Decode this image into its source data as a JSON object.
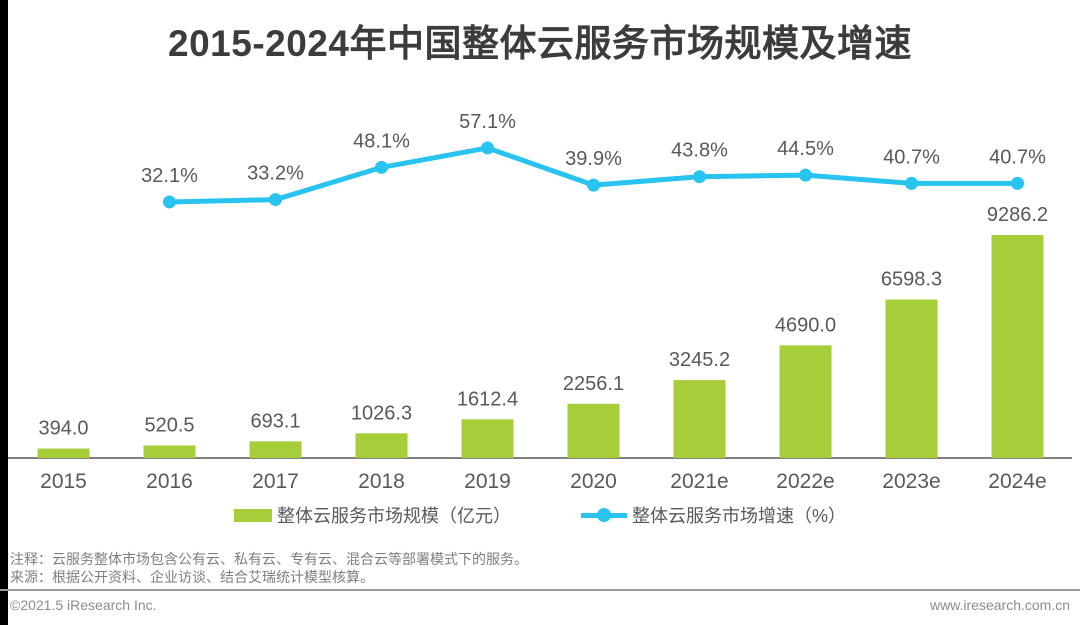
{
  "title": "2015-2024年中国整体云服务市场规模及增速",
  "legend": {
    "bar_label": "整体云服务市场规模（亿元）",
    "line_label": "整体云服务市场增速（%）"
  },
  "notes": {
    "line1": "注释：云服务整体市场包含公有云、私有云、专有云、混合云等部署模式下的服务。",
    "line2": "来源：根据公开资料、企业访谈、结合艾瑞统计模型核算。"
  },
  "footer": {
    "left": "©2021.5 iResearch Inc.",
    "right": "www.iresearch.com.cn"
  },
  "colors": {
    "bar": "#A6CE39",
    "line": "#29C3EF",
    "axis": "#7F7F7F",
    "title_text": "#3C3C3C",
    "label_text": "#595959",
    "note_text": "#7F7F7F",
    "footer_text": "#8C8C8C"
  },
  "chart_data": {
    "type": "combo",
    "title": "2015-2024年中国整体云服务市场规模及增速",
    "categories": [
      "2015",
      "2016",
      "2017",
      "2018",
      "2019",
      "2020",
      "2021e",
      "2022e",
      "2023e",
      "2024e"
    ],
    "series": [
      {
        "name": "整体云服务市场规模（亿元）",
        "type": "bar",
        "color": "#A6CE39",
        "values": [
          394.0,
          520.5,
          693.1,
          1026.3,
          1612.4,
          2256.1,
          3245.2,
          4690.0,
          6598.3,
          9286.2
        ]
      },
      {
        "name": "整体云服务市场增速（%）",
        "type": "line",
        "color": "#29C3EF",
        "categories": [
          "2016",
          "2017",
          "2018",
          "2019",
          "2020",
          "2021e",
          "2022e",
          "2023e",
          "2024e"
        ],
        "values": [
          32.1,
          33.2,
          48.1,
          57.1,
          39.9,
          43.8,
          44.5,
          40.7,
          40.7
        ]
      }
    ],
    "ylabel": "",
    "xlabel": "",
    "grid": false,
    "legend_position": "bottom",
    "value_labels": true
  }
}
